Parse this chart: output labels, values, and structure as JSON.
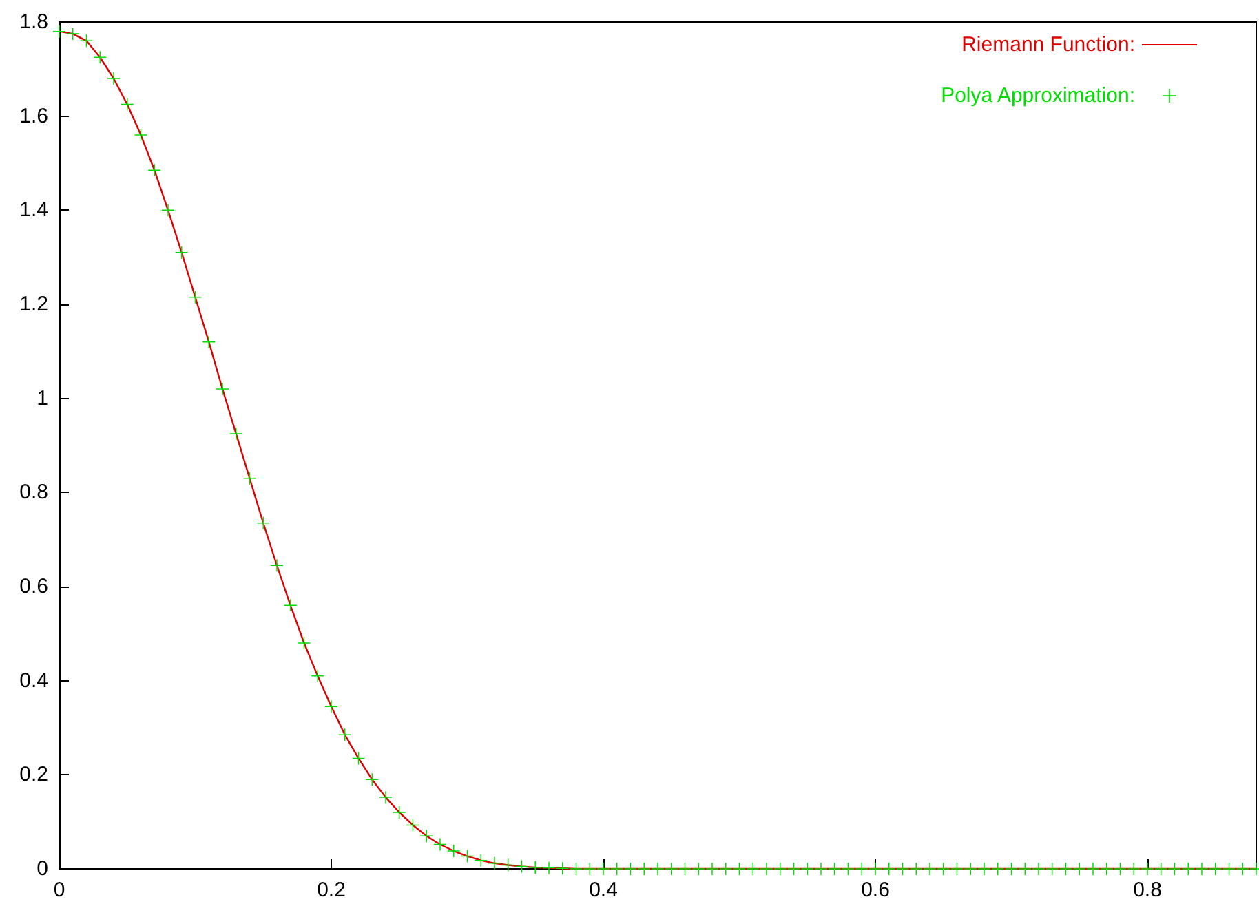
{
  "chart_data": {
    "type": "line",
    "x": [
      0,
      0.01,
      0.02,
      0.03,
      0.04,
      0.05,
      0.06,
      0.07,
      0.08,
      0.09,
      0.1,
      0.11,
      0.12,
      0.13,
      0.14,
      0.15,
      0.16,
      0.17,
      0.18,
      0.19,
      0.2,
      0.21,
      0.22,
      0.23,
      0.24,
      0.25,
      0.26,
      0.27,
      0.28,
      0.29,
      0.3,
      0.31,
      0.32,
      0.33,
      0.34,
      0.35,
      0.36,
      0.37,
      0.38,
      0.39,
      0.4,
      0.41,
      0.42,
      0.43,
      0.44,
      0.45,
      0.46,
      0.47,
      0.48,
      0.49,
      0.5,
      0.51,
      0.52,
      0.53,
      0.54,
      0.55,
      0.56,
      0.57,
      0.58,
      0.59,
      0.6,
      0.61,
      0.62,
      0.63,
      0.64,
      0.65,
      0.66,
      0.67,
      0.68,
      0.69,
      0.7,
      0.71,
      0.72,
      0.73,
      0.74,
      0.75,
      0.76,
      0.77,
      0.78,
      0.79,
      0.8,
      0.81,
      0.82,
      0.83,
      0.84,
      0.85,
      0.86,
      0.87,
      0.88
    ],
    "series": [
      {
        "name": "Riemann Function:",
        "marker": "none",
        "color": "#dd0000",
        "values": [
          1.78,
          1.775,
          1.76,
          1.725,
          1.68,
          1.625,
          1.56,
          1.485,
          1.4,
          1.31,
          1.215,
          1.12,
          1.02,
          0.925,
          0.83,
          0.735,
          0.645,
          0.56,
          0.48,
          0.41,
          0.345,
          0.285,
          0.235,
          0.19,
          0.152,
          0.12,
          0.093,
          0.07,
          0.052,
          0.038,
          0.027,
          0.018,
          0.012,
          0.008,
          0.005,
          0.003,
          0.002,
          0.001,
          0,
          0,
          0,
          0,
          0,
          0,
          0,
          0,
          0,
          0,
          0,
          0,
          0,
          0,
          0,
          0,
          0,
          0,
          0,
          0,
          0,
          0,
          0,
          0,
          0,
          0,
          0,
          0,
          0,
          0,
          0,
          0,
          0,
          0,
          0,
          0,
          0,
          0,
          0,
          0,
          0,
          0,
          0,
          0,
          0,
          0,
          0,
          0,
          0,
          0,
          0
        ]
      },
      {
        "name": "Polya Approximation:",
        "type": "scatter",
        "marker": "cross",
        "color": "#00dd00",
        "values": [
          1.78,
          1.775,
          1.76,
          1.725,
          1.68,
          1.625,
          1.56,
          1.485,
          1.4,
          1.31,
          1.215,
          1.12,
          1.02,
          0.925,
          0.83,
          0.735,
          0.645,
          0.56,
          0.48,
          0.41,
          0.345,
          0.285,
          0.235,
          0.19,
          0.152,
          0.12,
          0.093,
          0.07,
          0.052,
          0.038,
          0.027,
          0.018,
          0.012,
          0.008,
          0.005,
          0.003,
          0.002,
          0.001,
          0,
          0,
          0,
          0,
          0,
          0,
          0,
          0,
          0,
          0,
          0,
          0,
          0,
          0,
          0,
          0,
          0,
          0,
          0,
          0,
          0,
          0,
          0,
          0,
          0,
          0,
          0,
          0,
          0,
          0,
          0,
          0,
          0,
          0,
          0,
          0,
          0,
          0,
          0,
          0,
          0,
          0,
          0,
          0,
          0,
          0,
          0,
          0,
          0,
          0,
          0
        ]
      }
    ],
    "xlim": [
      0,
      0.88
    ],
    "xticks": [
      0,
      0.2,
      0.4,
      0.6,
      0.8
    ],
    "ylim": [
      0,
      1.8
    ],
    "yticks": [
      0,
      0.2,
      0.4,
      0.6,
      0.8,
      1,
      1.2,
      1.4,
      1.6,
      1.8
    ],
    "grid": false,
    "legend": "top right"
  }
}
